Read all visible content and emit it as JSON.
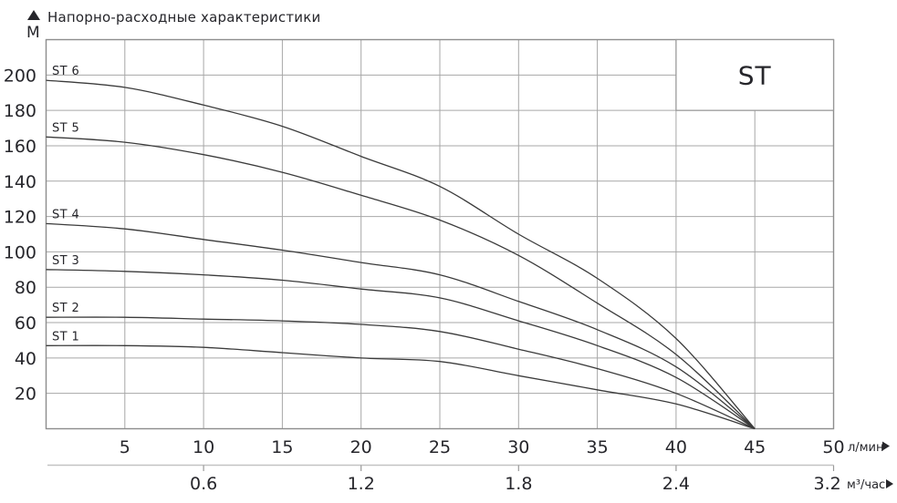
{
  "header": {
    "title": "Напорно-расходные характеристики",
    "y_axis_unit": "М"
  },
  "chart_data": {
    "type": "line",
    "title": "Напорно-расходные характеристики",
    "ylabel": "М",
    "xlabel_primary": "л/мин",
    "xlabel_secondary": "м³/час",
    "legend": "ST",
    "legend_position": "top-right-box",
    "grid": true,
    "xlim": [
      0,
      50
    ],
    "ylim": [
      0,
      220
    ],
    "x_grid_step": 5,
    "y_grid_step": 20,
    "x_ticks": [
      "5",
      "10",
      "15",
      "20",
      "25",
      "30",
      "35",
      "40",
      "45",
      "50"
    ],
    "x_tick_values": [
      5,
      10,
      15,
      20,
      25,
      30,
      35,
      40,
      45,
      50
    ],
    "y_ticks": [
      "20",
      "40",
      "60",
      "80",
      "100",
      "120",
      "140",
      "160",
      "180",
      "200"
    ],
    "y_tick_values": [
      20,
      40,
      60,
      80,
      100,
      120,
      140,
      160,
      180,
      200
    ],
    "secondary_x_ticks": [
      {
        "label": "0.6",
        "at_lmin": 10
      },
      {
        "label": "1.2",
        "at_lmin": 20
      },
      {
        "label": "1.8",
        "at_lmin": 30
      },
      {
        "label": "2.4",
        "at_lmin": 40
      },
      {
        "label": "3.2",
        "at_lmin": 49.6
      }
    ],
    "secondary_tick_marks_lmin": [
      10,
      20,
      30,
      40,
      50
    ],
    "series": [
      {
        "name": "ST 6",
        "points": [
          [
            0,
            197
          ],
          [
            5,
            193
          ],
          [
            10,
            183
          ],
          [
            15,
            171
          ],
          [
            20,
            154
          ],
          [
            25,
            137
          ],
          [
            30,
            110
          ],
          [
            35,
            85
          ],
          [
            40,
            51
          ],
          [
            45,
            0
          ]
        ]
      },
      {
        "name": "ST 5",
        "points": [
          [
            0,
            165
          ],
          [
            5,
            162
          ],
          [
            10,
            155
          ],
          [
            15,
            145
          ],
          [
            20,
            132
          ],
          [
            25,
            118
          ],
          [
            30,
            98
          ],
          [
            35,
            71
          ],
          [
            40,
            42
          ],
          [
            45,
            0
          ]
        ]
      },
      {
        "name": "ST 4",
        "points": [
          [
            0,
            116
          ],
          [
            5,
            113
          ],
          [
            10,
            107
          ],
          [
            15,
            101
          ],
          [
            20,
            94
          ],
          [
            25,
            87
          ],
          [
            30,
            72
          ],
          [
            35,
            56
          ],
          [
            40,
            35
          ],
          [
            45,
            0
          ]
        ]
      },
      {
        "name": "ST 3",
        "points": [
          [
            0,
            90
          ],
          [
            5,
            89
          ],
          [
            10,
            87
          ],
          [
            15,
            84
          ],
          [
            20,
            79
          ],
          [
            25,
            74
          ],
          [
            30,
            61
          ],
          [
            35,
            47
          ],
          [
            40,
            29
          ],
          [
            45,
            0
          ]
        ]
      },
      {
        "name": "ST 2",
        "points": [
          [
            0,
            63
          ],
          [
            5,
            63
          ],
          [
            10,
            62
          ],
          [
            15,
            61
          ],
          [
            20,
            59
          ],
          [
            25,
            55
          ],
          [
            30,
            45
          ],
          [
            35,
            34
          ],
          [
            40,
            20
          ],
          [
            45,
            0
          ]
        ]
      },
      {
        "name": "ST 1",
        "points": [
          [
            0,
            47
          ],
          [
            5,
            47
          ],
          [
            10,
            46
          ],
          [
            15,
            43
          ],
          [
            20,
            40
          ],
          [
            25,
            38
          ],
          [
            30,
            30
          ],
          [
            35,
            22
          ],
          [
            40,
            14
          ],
          [
            45,
            0
          ]
        ]
      }
    ],
    "colors": {
      "curve": "#3b3b3b",
      "grid": "#a7a7a7",
      "border": "#8d8d8d",
      "secondary_axis": "#c3c3c3",
      "tick": "#9a9a9a",
      "text": "#26262b",
      "background": "#ffffff"
    }
  }
}
